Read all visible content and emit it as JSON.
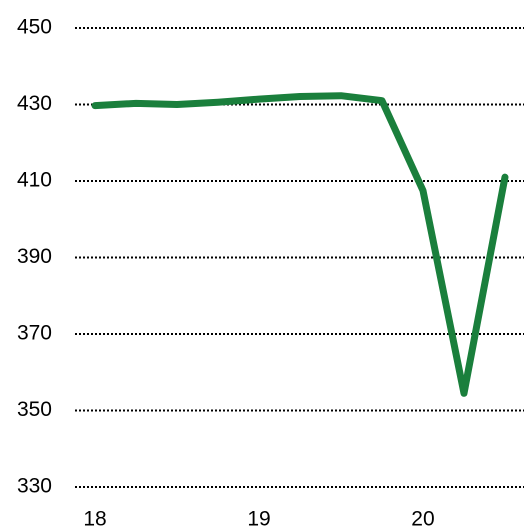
{
  "chart_data": {
    "type": "line",
    "x": [
      18,
      18.25,
      18.5,
      18.75,
      19,
      19.25,
      19.5,
      19.75,
      20,
      20.25,
      20.5
    ],
    "series": [
      {
        "name": null,
        "color": "#1a7f3c",
        "values": [
          429.7,
          430.3,
          430,
          430.6,
          431.4,
          432.1,
          432.3,
          431,
          407.5,
          354.5,
          411
        ]
      }
    ],
    "xlim": [
      17.878,
      20.616
    ],
    "xticks": [
      18,
      19,
      20
    ],
    "ylim": [
      330,
      450
    ],
    "yticks": [
      330,
      350,
      370,
      390,
      410,
      430,
      450
    ],
    "grid": true
  }
}
